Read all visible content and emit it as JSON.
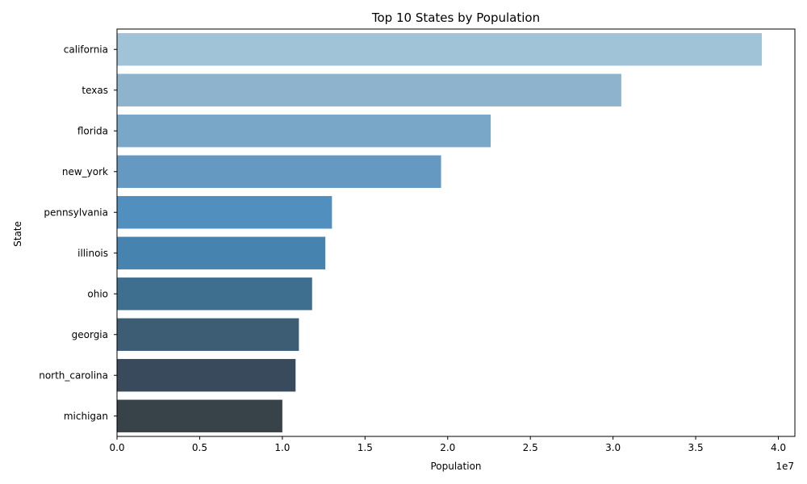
{
  "chart_data": {
    "type": "bar",
    "orientation": "horizontal",
    "title": "Top 10 States by Population",
    "xlabel": "Population",
    "ylabel": "State",
    "x_scale_label": "1e7",
    "xlim": [
      0,
      4.1
    ],
    "xticks": [
      "0.0",
      "0.5",
      "1.0",
      "1.5",
      "2.0",
      "2.5",
      "3.0",
      "3.5",
      "4.0"
    ],
    "categories": [
      "california",
      "texas",
      "florida",
      "new_york",
      "pennsylvania",
      "illinois",
      "ohio",
      "georgia",
      "north_carolina",
      "michigan"
    ],
    "values": [
      3.9,
      3.05,
      2.26,
      1.96,
      1.3,
      1.26,
      1.18,
      1.1,
      1.08,
      1.0
    ],
    "colors": [
      "#a0c3d8",
      "#8db3cd",
      "#79a7c8",
      "#6699c1",
      "#518fbe",
      "#4683af",
      "#3f6f8f",
      "#3d5d75",
      "#3a4a5d",
      "#374249"
    ],
    "grid": false,
    "legend": "none"
  }
}
